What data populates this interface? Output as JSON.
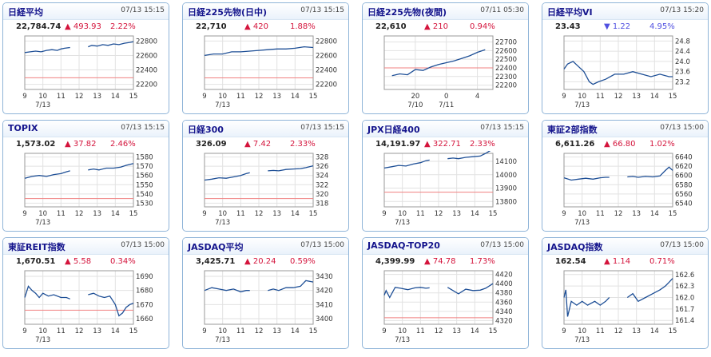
{
  "cards": [
    {
      "title": "日経平均",
      "time": "07/13 15:15",
      "price": "22,784.74",
      "change": "493.93",
      "pct": "2.22%",
      "direction": "up"
    },
    {
      "title": "日経225先物(日中)",
      "time": "07/13 15:15",
      "price": "22,710",
      "change": "420",
      "pct": "1.88%",
      "direction": "up"
    },
    {
      "title": "日経225先物(夜間)",
      "time": "07/11 05:30",
      "price": "22,610",
      "change": "210",
      "pct": "0.94%",
      "direction": "up"
    },
    {
      "title": "日経平均VI",
      "time": "07/13 15:20",
      "price": "23.43",
      "change": "1.22",
      "pct": "4.95%",
      "direction": "down"
    },
    {
      "title": "TOPIX",
      "time": "07/13 15:15",
      "price": "1,573.02",
      "change": "37.82",
      "pct": "2.46%",
      "direction": "up"
    },
    {
      "title": "日経300",
      "time": "07/13 15:15",
      "price": "326.09",
      "change": "7.42",
      "pct": "2.33%",
      "direction": "up"
    },
    {
      "title": "JPX日経400",
      "time": "07/13 15:15",
      "price": "14,191.97",
      "change": "322.71",
      "pct": "2.33%",
      "direction": "up"
    },
    {
      "title": "東証2部指数",
      "time": "07/13 15:00",
      "price": "6,611.26",
      "change": "66.80",
      "pct": "1.02%",
      "direction": "up"
    },
    {
      "title": "東証REIT指数",
      "time": "07/13 15:00",
      "price": "1,670.51",
      "change": "5.58",
      "pct": "0.34%",
      "direction": "up"
    },
    {
      "title": "JASDAQ平均",
      "time": "07/13 15:00",
      "price": "3,425.71",
      "change": "20.24",
      "pct": "0.59%",
      "direction": "up"
    },
    {
      "title": "JASDAQ-TOP20",
      "time": "07/13 15:00",
      "price": "4,399.99",
      "change": "74.78",
      "pct": "1.73%",
      "direction": "up"
    },
    {
      "title": "JASDAQ指数",
      "time": "07/13 15:00",
      "price": "162.54",
      "change": "1.14",
      "pct": "0.71%",
      "direction": "up"
    }
  ],
  "chart_data": [
    {
      "type": "line",
      "title": "日経平均",
      "x_ticks": [
        "9",
        "10",
        "11",
        "12",
        "13",
        "14",
        "15"
      ],
      "x_sub": "7/13",
      "y_ticks": [
        "22800",
        "22600",
        "22400",
        "22200"
      ],
      "ylim": [
        22130,
        22870
      ],
      "ref": 22291,
      "series": [
        {
          "x": [
            9,
            9.3,
            9.6,
            9.9,
            10.2,
            10.5,
            10.8,
            11,
            11.2,
            11.5
          ],
          "values": [
            22640,
            22650,
            22660,
            22650,
            22670,
            22680,
            22670,
            22690,
            22700,
            22710
          ]
        },
        {
          "x": [
            12.5,
            12.7,
            13,
            13.3,
            13.6,
            13.9,
            14.2,
            14.5,
            14.8,
            15
          ],
          "values": [
            22720,
            22740,
            22730,
            22750,
            22740,
            22760,
            22750,
            22770,
            22780,
            22790
          ]
        }
      ]
    },
    {
      "type": "line",
      "title": "日経225先物(日中)",
      "x_ticks": [
        "9",
        "10",
        "11",
        "12",
        "13",
        "14",
        "15"
      ],
      "x_sub": "7/13",
      "y_ticks": [
        "22800",
        "22600",
        "22400",
        "22200"
      ],
      "ylim": [
        22130,
        22870
      ],
      "ref": 22290,
      "series": [
        {
          "x": [
            9,
            9.5,
            10,
            10.5,
            11,
            11.5,
            12,
            12.5,
            13,
            13.5,
            14,
            14.5,
            15
          ],
          "values": [
            22600,
            22620,
            22620,
            22650,
            22650,
            22660,
            22670,
            22680,
            22690,
            22690,
            22700,
            22720,
            22710
          ]
        }
      ]
    },
    {
      "type": "line",
      "title": "日経225先物(夜間)",
      "x_ticks": [
        "20",
        "0",
        "4"
      ],
      "x_tick_pos": [
        20,
        24,
        28
      ],
      "x_sub": [
        "7/10",
        "7/11"
      ],
      "y_ticks": [
        "22700",
        "22600",
        "22500",
        "22400",
        "22300",
        "22200"
      ],
      "ylim": [
        22150,
        22770
      ],
      "ref": 22400,
      "series": [
        {
          "x": [
            17,
            18,
            19,
            20,
            21,
            22,
            23,
            24,
            25,
            26,
            27,
            28,
            29
          ],
          "values": [
            22310,
            22330,
            22320,
            22380,
            22370,
            22410,
            22440,
            22460,
            22480,
            22510,
            22540,
            22580,
            22610
          ]
        }
      ]
    },
    {
      "type": "line",
      "title": "日経平均VI",
      "x_ticks": [
        "9",
        "10",
        "11",
        "12",
        "13",
        "14",
        "15"
      ],
      "x_sub": "7/13",
      "y_ticks": [
        "24.8",
        "24.4",
        "24.0",
        "23.6",
        "23.2"
      ],
      "ylim": [
        22.9,
        25.0
      ],
      "ref": null,
      "series": [
        {
          "x": [
            9,
            9.2,
            9.5,
            9.8,
            10.1,
            10.4,
            10.6,
            10.9,
            11.3,
            11.8,
            12.3,
            12.8,
            13.3,
            13.8,
            14.3,
            14.8,
            15
          ],
          "values": [
            23.7,
            23.9,
            24.0,
            23.8,
            23.6,
            23.2,
            23.1,
            23.2,
            23.3,
            23.5,
            23.5,
            23.6,
            23.5,
            23.4,
            23.5,
            23.4,
            23.4
          ]
        }
      ]
    },
    {
      "type": "line",
      "title": "TOPIX",
      "x_ticks": [
        "9",
        "10",
        "11",
        "12",
        "13",
        "14",
        "15"
      ],
      "x_sub": "7/13",
      "y_ticks": [
        "1580",
        "1570",
        "1560",
        "1550",
        "1540",
        "1530"
      ],
      "ylim": [
        1526,
        1584
      ],
      "ref": 1535,
      "series": [
        {
          "x": [
            9,
            9.4,
            9.8,
            10.2,
            10.6,
            11,
            11.3,
            11.5
          ],
          "values": [
            1557,
            1559,
            1560,
            1559,
            1561,
            1562,
            1564,
            1565
          ]
        },
        {
          "x": [
            12.5,
            12.8,
            13.1,
            13.5,
            13.9,
            14.3,
            14.6,
            15
          ],
          "values": [
            1566,
            1567,
            1566,
            1568,
            1568,
            1569,
            1571,
            1573
          ]
        }
      ]
    },
    {
      "type": "line",
      "title": "日経300",
      "x_ticks": [
        "9",
        "10",
        "11",
        "12",
        "13",
        "14",
        "15"
      ],
      "x_sub": "7/13",
      "y_ticks": [
        "328",
        "326",
        "324",
        "322",
        "320",
        "318"
      ],
      "ylim": [
        317.2,
        328.8
      ],
      "ref": 319,
      "series": [
        {
          "x": [
            9,
            9.4,
            9.8,
            10.2,
            10.6,
            11,
            11.3,
            11.5
          ],
          "values": [
            323.0,
            323.2,
            323.5,
            323.4,
            323.7,
            324.0,
            324.4,
            324.6
          ]
        },
        {
          "x": [
            12.5,
            12.8,
            13.1,
            13.5,
            13.9,
            14.3,
            14.6,
            15
          ],
          "values": [
            325.0,
            325.1,
            325.0,
            325.3,
            325.4,
            325.5,
            325.7,
            326.1
          ]
        }
      ]
    },
    {
      "type": "line",
      "title": "JPX日経400",
      "x_ticks": [
        "9",
        "10",
        "11",
        "12",
        "13",
        "14",
        "15"
      ],
      "x_sub": "7/13",
      "y_ticks": [
        "14100",
        "14000",
        "13900",
        "13800"
      ],
      "ylim": [
        13760,
        14160
      ],
      "ref": 13870,
      "series": [
        {
          "x": [
            9,
            9.4,
            9.8,
            10.2,
            10.6,
            11,
            11.3,
            11.5
          ],
          "values": [
            14050,
            14060,
            14070,
            14065,
            14080,
            14090,
            14105,
            14110
          ]
        },
        {
          "x": [
            12.5,
            12.8,
            13.1,
            13.5,
            13.9,
            14.3,
            14.6,
            15
          ],
          "values": [
            14120,
            14125,
            14120,
            14130,
            14135,
            14140,
            14160,
            14192
          ]
        }
      ]
    },
    {
      "type": "line",
      "title": "東証2部指数",
      "x_ticks": [
        "9",
        "10",
        "11",
        "12",
        "13",
        "14",
        "15"
      ],
      "x_sub": "7/13",
      "y_ticks": [
        "6640",
        "6620",
        "6600",
        "6580",
        "6560",
        "6540"
      ],
      "ylim": [
        6532,
        6648
      ],
      "ref": null,
      "series": [
        {
          "x": [
            9,
            9.4,
            9.8,
            10.2,
            10.6,
            11,
            11.3,
            11.5
          ],
          "values": [
            6595,
            6590,
            6592,
            6594,
            6592,
            6595,
            6596,
            6596
          ]
        },
        {
          "x": [
            12.5,
            12.8,
            13.1,
            13.5,
            13.9,
            14.3,
            14.6,
            14.8,
            15
          ],
          "values": [
            6597,
            6598,
            6596,
            6598,
            6597,
            6599,
            6611,
            6618,
            6611
          ]
        }
      ]
    },
    {
      "type": "line",
      "title": "東証REIT指数",
      "x_ticks": [
        "9",
        "10",
        "11",
        "12",
        "13",
        "14",
        "15"
      ],
      "x_sub": "7/13",
      "y_ticks": [
        "1690",
        "1680",
        "1670",
        "1660"
      ],
      "ylim": [
        1656,
        1694
      ],
      "ref": 1666,
      "series": [
        {
          "x": [
            9,
            9.2,
            9.4,
            9.6,
            9.8,
            10,
            10.3,
            10.6,
            11,
            11.3,
            11.5
          ],
          "values": [
            1675,
            1683,
            1680,
            1678,
            1675,
            1678,
            1676,
            1677,
            1675,
            1675,
            1674
          ]
        },
        {
          "x": [
            12.5,
            12.8,
            13.1,
            13.4,
            13.7,
            14,
            14.2,
            14.4,
            14.6,
            14.8,
            15
          ],
          "values": [
            1677,
            1678,
            1676,
            1675,
            1676,
            1670,
            1662,
            1664,
            1668,
            1670,
            1671
          ]
        }
      ]
    },
    {
      "type": "line",
      "title": "JASDAQ平均",
      "x_ticks": [
        "9",
        "10",
        "11",
        "12",
        "13",
        "14",
        "15"
      ],
      "x_sub": "7/13",
      "y_ticks": [
        "3430",
        "3420",
        "3410",
        "3400"
      ],
      "ylim": [
        3396,
        3434
      ],
      "ref": null,
      "series": [
        {
          "x": [
            9,
            9.4,
            9.8,
            10.2,
            10.6,
            11,
            11.3,
            11.5
          ],
          "values": [
            3420,
            3422,
            3421,
            3420,
            3421,
            3419,
            3420,
            3420
          ]
        },
        {
          "x": [
            12.5,
            12.8,
            13.1,
            13.5,
            13.9,
            14.3,
            14.6,
            15
          ],
          "values": [
            3420,
            3421,
            3420,
            3422,
            3422,
            3423,
            3427,
            3426
          ]
        }
      ]
    },
    {
      "type": "line",
      "title": "JASDAQ-TOP20",
      "x_ticks": [
        "9",
        "10",
        "11",
        "12",
        "13",
        "14",
        "15"
      ],
      "x_sub": "7/13",
      "y_ticks": [
        "4420",
        "4400",
        "4380",
        "4360",
        "4340",
        "4320"
      ],
      "ylim": [
        4312,
        4428
      ],
      "ref": 4326,
      "series": [
        {
          "x": [
            9,
            9.1,
            9.3,
            9.6,
            9.9,
            10.3,
            10.7,
            11,
            11.3,
            11.5
          ],
          "values": [
            4375,
            4385,
            4370,
            4392,
            4390,
            4387,
            4391,
            4392,
            4390,
            4391
          ]
        },
        {
          "x": [
            12.5,
            12.8,
            13.1,
            13.5,
            13.9,
            14.3,
            14.6,
            15
          ],
          "values": [
            4392,
            4385,
            4378,
            4388,
            4385,
            4386,
            4390,
            4400
          ]
        }
      ]
    },
    {
      "type": "line",
      "title": "JASDAQ指数",
      "x_ticks": [
        "9",
        "10",
        "11",
        "12",
        "13",
        "14",
        "15"
      ],
      "x_sub": "7/13",
      "y_ticks": [
        "162.6",
        "162.3",
        "162.0",
        "161.7",
        "161.4"
      ],
      "ylim": [
        161.3,
        162.7
      ],
      "ref": null,
      "series": [
        {
          "x": [
            9,
            9.1,
            9.2,
            9.4,
            9.7,
            10,
            10.3,
            10.7,
            11,
            11.3,
            11.5
          ],
          "values": [
            162.0,
            162.2,
            161.5,
            161.9,
            161.8,
            161.9,
            161.8,
            161.9,
            161.8,
            161.9,
            162.0
          ]
        },
        {
          "x": [
            12.5,
            12.8,
            13.1,
            13.5,
            13.9,
            14.3,
            14.6,
            14.8,
            15
          ],
          "values": [
            162.0,
            162.1,
            161.9,
            162.0,
            162.1,
            162.2,
            162.3,
            162.4,
            162.5
          ]
        }
      ]
    }
  ]
}
